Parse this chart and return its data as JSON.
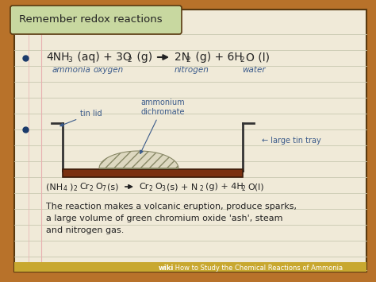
{
  "bg_color": "#f0ead8",
  "outer_bg": "#b8722a",
  "header_bg": "#c8d8a0",
  "header_text": "Remember redox reactions",
  "header_fontsize": 9.5,
  "line_color": "#c8c8b0",
  "border_color": "#5a3a10",
  "bullet_color": "#1a3a6a",
  "labels_row": [
    "ammonia",
    "oxygen",
    "nitrogen",
    "water"
  ],
  "labels_color": "#3a5a8a",
  "diagram_label1": "tin lid",
  "diagram_label2": "ammonium\ndichromate",
  "diagram_label3": "← large tin tray",
  "annotation_color": "#3a5a8a",
  "text_color": "#222222",
  "tray_color": "#7a3010",
  "tray_outline": "#3a1a08",
  "footer_bg": "#c8a830",
  "footer_color": "#ffffff",
  "footer_text": "wiki How to Study the Chemical Reactions of Ammonia",
  "desc_text": "The reaction makes a volcanic eruption, produce sparks,\na large volume of green chromium oxide 'ash', steam\nand nitrogen gas."
}
